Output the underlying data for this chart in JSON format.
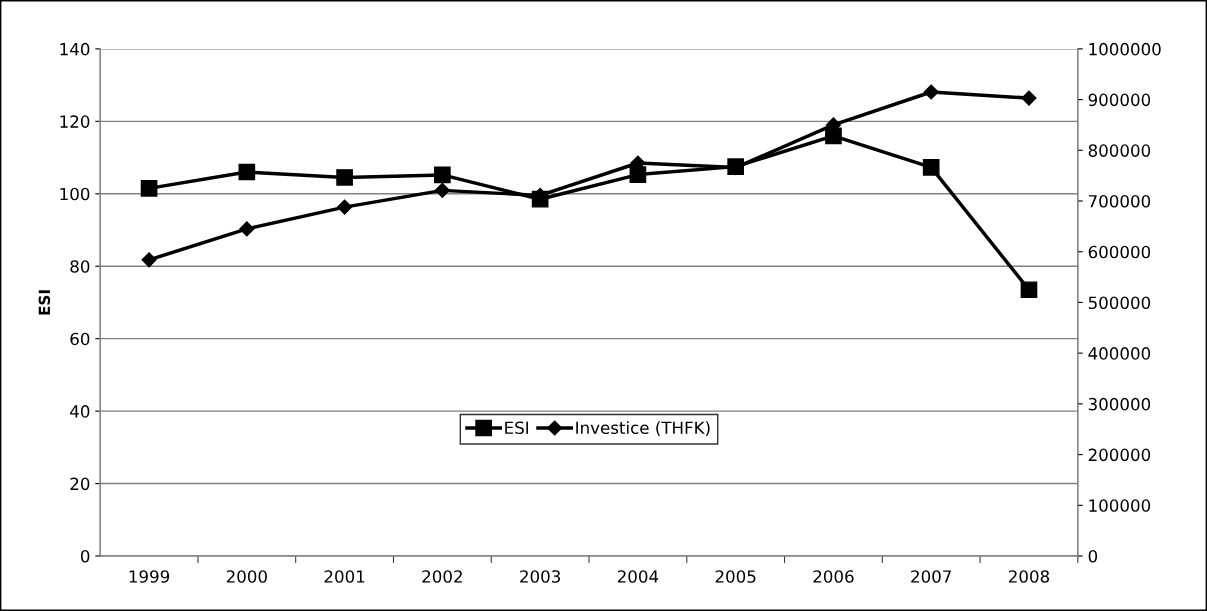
{
  "chart_data": {
    "type": "line",
    "ylabel": "ESI",
    "categories": [
      "1999",
      "2000",
      "2001",
      "2002",
      "2003",
      "2004",
      "2005",
      "2006",
      "2007",
      "2008"
    ],
    "series": [
      {
        "name": "ESI",
        "color": "#000000",
        "marker": "square",
        "values": [
          101.5,
          106,
          104.5,
          105.2,
          98.5,
          105.3,
          107.5,
          116,
          107.3,
          73.5
        ]
      },
      {
        "name": "Investice (THFK)",
        "color": "#000000",
        "marker": "diamond",
        "axis": "y2",
        "values": [
          584000,
          645000,
          688000,
          721000,
          711000,
          775000,
          766000,
          850000,
          915000,
          903000
        ]
      }
    ],
    "ylim": [
      0,
      140
    ],
    "yticks": [
      0,
      20,
      40,
      60,
      80,
      100,
      120,
      140
    ],
    "y2lim": [
      0,
      1000000
    ],
    "y2ticks": [
      0,
      100000,
      200000,
      300000,
      400000,
      500000,
      600000,
      700000,
      800000,
      900000,
      1000000
    ],
    "grid": "y",
    "legend": "bottom",
    "line_style": "solid"
  }
}
